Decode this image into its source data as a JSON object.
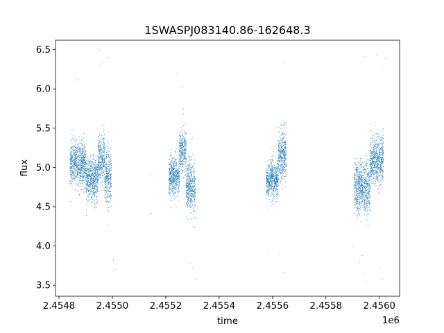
{
  "chart_data": {
    "type": "scatter",
    "title": "1SWASPJ083140.86-162648.3",
    "xlabel": "time",
    "ylabel": "flux",
    "x_offset_label": "1e6",
    "xlim": [
      2454787,
      2456076
    ],
    "ylim": [
      3.36,
      6.62
    ],
    "x_ticks": [
      2454800,
      2455000,
      2455200,
      2455400,
      2455600,
      2455800,
      2456000
    ],
    "x_tick_labels": [
      "2.4548",
      "2.4550",
      "2.4552",
      "2.4554",
      "2.4556",
      "2.4558",
      "2.4560"
    ],
    "y_ticks": [
      3.5,
      4.0,
      4.5,
      5.0,
      5.5,
      6.0,
      6.5
    ],
    "y_tick_labels": [
      "3.5",
      "4.0",
      "4.5",
      "5.0",
      "5.5",
      "6.0",
      "6.5"
    ],
    "grid": false,
    "marker_color": "#1f77b4",
    "series": [
      {
        "name": "",
        "clusters": [
          {
            "x_range": [
              2454840,
              2454900
            ],
            "y_center": 5.05,
            "y_spread": 0.25
          },
          {
            "x_range": [
              2454900,
              2454945
            ],
            "y_center": 4.85,
            "y_spread": 0.25
          },
          {
            "x_range": [
              2454945,
              2454970
            ],
            "y_center": 5.1,
            "y_spread": 0.3
          },
          {
            "x_range": [
              2454970,
              2454995
            ],
            "y_center": 4.85,
            "y_spread": 0.35
          },
          {
            "x_range": [
              2455210,
              2455250
            ],
            "y_center": 4.9,
            "y_spread": 0.22
          },
          {
            "x_range": [
              2455250,
              2455275
            ],
            "y_center": 5.2,
            "y_spread": 0.25
          },
          {
            "x_range": [
              2455275,
              2455310
            ],
            "y_center": 4.75,
            "y_spread": 0.3
          },
          {
            "x_range": [
              2455575,
              2455620
            ],
            "y_center": 4.85,
            "y_spread": 0.22
          },
          {
            "x_range": [
              2455620,
              2455650
            ],
            "y_center": 5.15,
            "y_spread": 0.28
          },
          {
            "x_range": [
              2455905,
              2455965
            ],
            "y_center": 4.75,
            "y_spread": 0.3
          },
          {
            "x_range": [
              2455965,
              2456015
            ],
            "y_center": 5.1,
            "y_spread": 0.28
          }
        ],
        "outliers": [
          [
            2454950,
            6.5
          ],
          [
            2454955,
            6.3
          ],
          [
            2454960,
            6.35
          ],
          [
            2454868,
            6.12
          ],
          [
            2454985,
            6.4
          ],
          [
            2455010,
            3.7
          ],
          [
            2455003,
            3.82
          ],
          [
            2455140,
            4.92
          ],
          [
            2455145,
            4.42
          ],
          [
            2455260,
            6.02
          ],
          [
            2455265,
            5.75
          ],
          [
            2455240,
            6.2
          ],
          [
            2455288,
            3.78
          ],
          [
            2455310,
            3.58
          ],
          [
            2455300,
            3.72
          ],
          [
            2455645,
            6.35
          ],
          [
            2455640,
            3.67
          ],
          [
            2455625,
            3.9
          ],
          [
            2455585,
            3.95
          ],
          [
            2455945,
            6.42
          ],
          [
            2455947,
            3.55
          ],
          [
            2455925,
            3.8
          ],
          [
            2455938,
            3.65
          ],
          [
            2455990,
            6.44
          ],
          [
            2456008,
            6.28
          ],
          [
            2456010,
            3.58
          ],
          [
            2456000,
            3.72
          ],
          [
            2456025,
            6.39
          ],
          [
            2455935,
            3.88
          ],
          [
            2455898,
            4.0
          ]
        ]
      }
    ]
  }
}
